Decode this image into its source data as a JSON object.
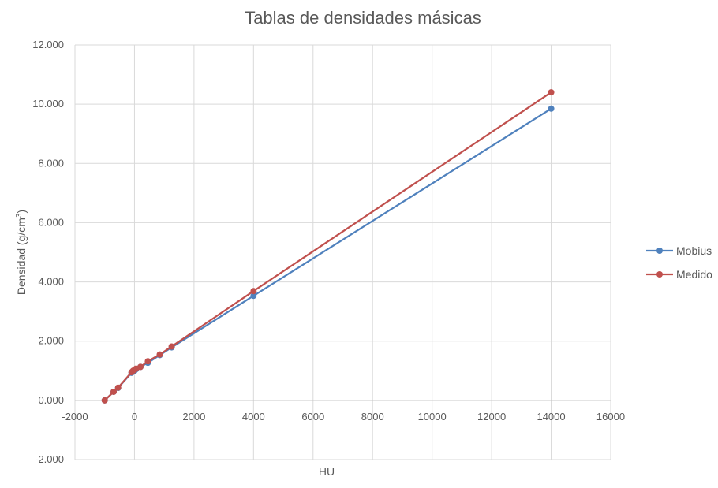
{
  "chart_data": {
    "type": "scatter",
    "title": "Tablas de densidades másicas",
    "xlabel": "HU",
    "ylabel": "Densidad (g/cm",
    "ylabel_sup": "3",
    "ylabel_close": ")",
    "xlim": [
      -2000,
      16000
    ],
    "ylim": [
      -2,
      12
    ],
    "x_ticks": [
      -2000,
      0,
      2000,
      4000,
      6000,
      8000,
      10000,
      12000,
      14000,
      16000
    ],
    "x_tick_labels": [
      "-2000",
      "0",
      "2000",
      "4000",
      "6000",
      "8000",
      "10000",
      "12000",
      "14000",
      "16000"
    ],
    "y_ticks": [
      -2,
      0,
      2,
      4,
      6,
      8,
      10,
      12
    ],
    "y_tick_labels": [
      "-2.000",
      "0.000",
      "2.000",
      "4.000",
      "6.000",
      "8.000",
      "10.000",
      "12.000"
    ],
    "x_axis_crosses_at_y": 0,
    "grid": true,
    "legend_position": "right",
    "series": [
      {
        "name": "Mobius",
        "color": "#4f81bd",
        "points": [
          {
            "x": -1000,
            "y": 0.0
          },
          {
            "x": -700,
            "y": 0.29
          },
          {
            "x": -550,
            "y": 0.42
          },
          {
            "x": -100,
            "y": 0.93
          },
          {
            "x": -50,
            "y": 0.98
          },
          {
            "x": 0,
            "y": 1.0
          },
          {
            "x": 50,
            "y": 1.05
          },
          {
            "x": 200,
            "y": 1.13
          },
          {
            "x": 450,
            "y": 1.27
          },
          {
            "x": 850,
            "y": 1.53
          },
          {
            "x": 1250,
            "y": 1.79
          },
          {
            "x": 4000,
            "y": 3.53
          },
          {
            "x": 14000,
            "y": 9.85
          }
        ]
      },
      {
        "name": "Medido",
        "color": "#c0504d",
        "points": [
          {
            "x": -1000,
            "y": 0.0
          },
          {
            "x": -700,
            "y": 0.29
          },
          {
            "x": -550,
            "y": 0.43
          },
          {
            "x": -100,
            "y": 0.95
          },
          {
            "x": -50,
            "y": 1.0
          },
          {
            "x": 0,
            "y": 1.03
          },
          {
            "x": 50,
            "y": 1.07
          },
          {
            "x": 200,
            "y": 1.13
          },
          {
            "x": 450,
            "y": 1.32
          },
          {
            "x": 850,
            "y": 1.55
          },
          {
            "x": 1250,
            "y": 1.82
          },
          {
            "x": 4000,
            "y": 3.69
          },
          {
            "x": 14000,
            "y": 10.4
          }
        ]
      }
    ]
  }
}
